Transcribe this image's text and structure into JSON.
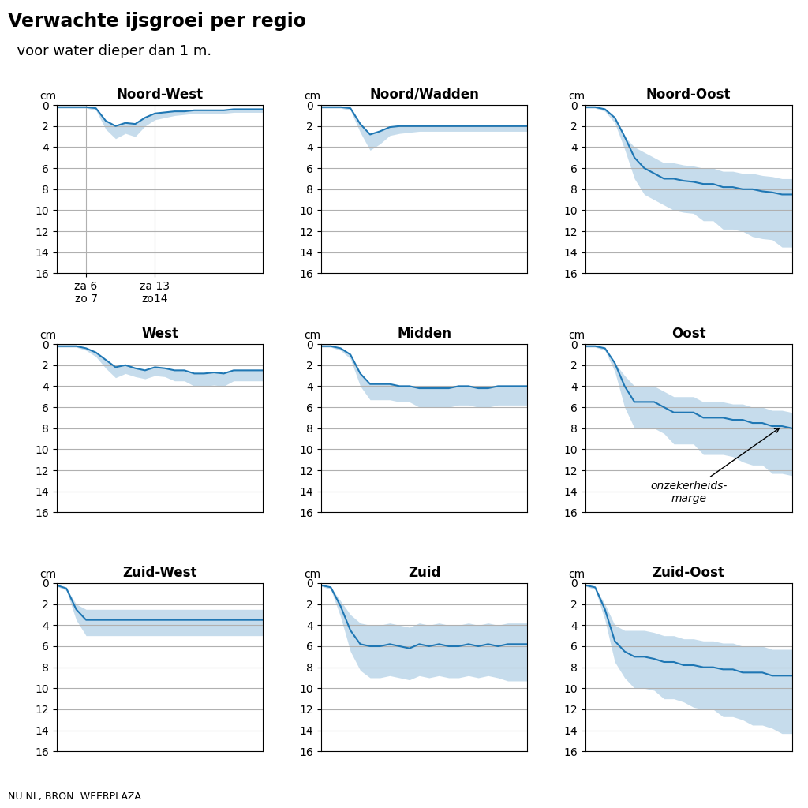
{
  "title": "Verwachte ijsgroei per regio",
  "subtitle": "  voor water dieper dan 1 m.",
  "source": "NU.NL, BRON: WEERPLAZA",
  "chart_data": [
    {
      "type": "line",
      "title": "Noord-West",
      "y_label": "cm",
      "categories": [
        null,
        null,
        null,
        "za 6\nzo 7",
        null,
        null,
        null,
        null,
        null,
        null,
        "za 13\nzo14",
        null,
        null,
        null,
        null,
        null,
        null,
        null,
        null,
        null,
        null,
        null
      ],
      "values": [
        0.2,
        0.2,
        0.2,
        0.2,
        0.3,
        1.5,
        2.0,
        1.7,
        1.8,
        1.2,
        0.8,
        0.7,
        0.6,
        0.6,
        0.5,
        0.5,
        0.5,
        0.5,
        0.4,
        0.4,
        0.4,
        0.4
      ],
      "error_upper": [
        0.1,
        0.1,
        0.1,
        0.1,
        0.2,
        0.8,
        1.2,
        1.0,
        1.2,
        0.8,
        0.6,
        0.5,
        0.4,
        0.3,
        0.3,
        0.3,
        0.3,
        0.3,
        0.3,
        0.3,
        0.3,
        0.3
      ],
      "error_lower": [
        0.0,
        0.0,
        0.0,
        0.0,
        0.0,
        0.0,
        0.0,
        0.0,
        0.0,
        0.0,
        0.0,
        0.0,
        0.0,
        0.0,
        0.0,
        0.0,
        0.0,
        0.0,
        0.0,
        0.0,
        0.0,
        0.0
      ],
      "ylim": [
        16,
        0
      ],
      "yticks": [
        0,
        2,
        4,
        6,
        8,
        10,
        12,
        14,
        16
      ],
      "grid": true
    },
    {
      "type": "line",
      "title": "Noord/Wadden",
      "y_label": "cm",
      "categories": [
        null,
        null,
        null,
        null,
        null,
        null,
        null,
        null,
        null,
        null,
        null,
        null,
        null,
        null,
        null,
        null,
        null,
        null,
        null,
        null,
        null,
        null
      ],
      "values": [
        0.2,
        0.2,
        0.2,
        0.3,
        1.8,
        2.8,
        2.5,
        2.1,
        2.0,
        2.0,
        2.0,
        2.0,
        2.0,
        2.0,
        2.0,
        2.0,
        2.0,
        2.0,
        2.0,
        2.0,
        2.0,
        2.0
      ],
      "error_upper": [
        0.1,
        0.1,
        0.1,
        0.2,
        0.8,
        1.5,
        1.2,
        0.8,
        0.7,
        0.6,
        0.5,
        0.5,
        0.5,
        0.5,
        0.5,
        0.5,
        0.5,
        0.5,
        0.5,
        0.5,
        0.5,
        0.5
      ],
      "error_lower": [
        0.0,
        0.0,
        0.0,
        0.0,
        0.0,
        0.0,
        0.0,
        0.0,
        0.0,
        0.0,
        0.0,
        0.0,
        0.0,
        0.0,
        0.0,
        0.0,
        0.0,
        0.0,
        0.0,
        0.0,
        0.0,
        0.0
      ],
      "ylim": [
        16,
        0
      ],
      "yticks": [
        0,
        2,
        4,
        6,
        8,
        10,
        12,
        14,
        16
      ],
      "grid": true
    },
    {
      "type": "line",
      "title": "Noord-Oost",
      "y_label": "cm",
      "categories": [
        null,
        null,
        null,
        null,
        null,
        null,
        null,
        null,
        null,
        null,
        null,
        null,
        null,
        null,
        null,
        null,
        null,
        null,
        null,
        null,
        null,
        null
      ],
      "values": [
        0.2,
        0.2,
        0.4,
        1.2,
        3.0,
        5.0,
        6.0,
        6.5,
        7.0,
        7.0,
        7.2,
        7.3,
        7.5,
        7.5,
        7.8,
        7.8,
        8.0,
        8.0,
        8.2,
        8.3,
        8.5,
        8.5
      ],
      "error_upper": [
        0.1,
        0.1,
        0.2,
        0.5,
        1.2,
        2.0,
        2.5,
        2.5,
        2.5,
        3.0,
        3.0,
        3.0,
        3.5,
        3.5,
        4.0,
        4.0,
        4.0,
        4.5,
        4.5,
        4.5,
        5.0,
        5.0
      ],
      "error_lower": [
        0.0,
        0.0,
        0.0,
        0.0,
        0.0,
        1.0,
        1.5,
        1.5,
        1.5,
        1.5,
        1.5,
        1.5,
        1.5,
        1.5,
        1.5,
        1.5,
        1.5,
        1.5,
        1.5,
        1.5,
        1.5,
        1.5
      ],
      "ylim": [
        16,
        0
      ],
      "yticks": [
        0,
        2,
        4,
        6,
        8,
        10,
        12,
        14,
        16
      ],
      "grid": true
    },
    {
      "type": "line",
      "title": "West",
      "y_label": "cm",
      "categories": [
        null,
        null,
        null,
        null,
        null,
        null,
        null,
        null,
        null,
        null,
        null,
        null,
        null,
        null,
        null,
        null,
        null,
        null,
        null,
        null,
        null,
        null
      ],
      "values": [
        0.2,
        0.2,
        0.2,
        0.4,
        0.8,
        1.5,
        2.2,
        2.0,
        2.3,
        2.5,
        2.2,
        2.3,
        2.5,
        2.5,
        2.8,
        2.8,
        2.7,
        2.8,
        2.5,
        2.5,
        2.5,
        2.5
      ],
      "error_upper": [
        0.1,
        0.1,
        0.1,
        0.2,
        0.4,
        0.8,
        1.0,
        0.8,
        0.8,
        0.8,
        0.8,
        0.8,
        1.0,
        1.0,
        1.2,
        1.2,
        1.2,
        1.2,
        1.0,
        1.0,
        1.0,
        1.0
      ],
      "error_lower": [
        0.0,
        0.0,
        0.0,
        0.0,
        0.0,
        0.0,
        0.0,
        0.0,
        0.0,
        0.0,
        0.0,
        0.0,
        0.0,
        0.0,
        0.0,
        0.0,
        0.0,
        0.0,
        0.0,
        0.0,
        0.0,
        0.0
      ],
      "ylim": [
        16,
        0
      ],
      "yticks": [
        0,
        2,
        4,
        6,
        8,
        10,
        12,
        14,
        16
      ],
      "grid": true
    },
    {
      "type": "line",
      "title": "Midden",
      "y_label": "cm",
      "categories": [
        null,
        null,
        null,
        null,
        null,
        null,
        null,
        null,
        null,
        null,
        null,
        null,
        null,
        null,
        null,
        null,
        null,
        null,
        null,
        null,
        null,
        null
      ],
      "values": [
        0.2,
        0.2,
        0.4,
        1.0,
        2.8,
        3.8,
        3.8,
        3.8,
        4.0,
        4.0,
        4.2,
        4.2,
        4.2,
        4.2,
        4.0,
        4.0,
        4.2,
        4.2,
        4.0,
        4.0,
        4.0,
        4.0
      ],
      "error_upper": [
        0.1,
        0.1,
        0.2,
        0.4,
        1.2,
        1.5,
        1.5,
        1.5,
        1.5,
        1.5,
        1.8,
        1.8,
        1.8,
        1.8,
        1.8,
        1.8,
        1.8,
        1.8,
        1.8,
        1.8,
        1.8,
        1.8
      ],
      "error_lower": [
        0.0,
        0.0,
        0.0,
        0.0,
        0.0,
        0.0,
        0.0,
        0.0,
        0.0,
        0.0,
        0.0,
        0.0,
        0.0,
        0.0,
        0.0,
        0.0,
        0.0,
        0.0,
        0.0,
        0.0,
        0.0,
        0.0
      ],
      "ylim": [
        16,
        0
      ],
      "yticks": [
        0,
        2,
        4,
        6,
        8,
        10,
        12,
        14,
        16
      ],
      "grid": true
    },
    {
      "type": "line",
      "title": "Oost",
      "y_label": "cm",
      "categories": [
        null,
        null,
        null,
        null,
        null,
        null,
        null,
        null,
        null,
        null,
        null,
        null,
        null,
        null,
        null,
        null,
        null,
        null,
        null,
        null,
        null,
        null
      ],
      "values": [
        0.2,
        0.2,
        0.4,
        1.8,
        4.0,
        5.5,
        5.5,
        5.5,
        6.0,
        6.5,
        6.5,
        6.5,
        7.0,
        7.0,
        7.0,
        7.2,
        7.2,
        7.5,
        7.5,
        7.8,
        7.8,
        8.0
      ],
      "error_upper": [
        0.1,
        0.1,
        0.2,
        0.8,
        2.0,
        2.5,
        2.5,
        2.5,
        2.5,
        3.0,
        3.0,
        3.0,
        3.5,
        3.5,
        3.5,
        3.5,
        4.0,
        4.0,
        4.0,
        4.5,
        4.5,
        4.5
      ],
      "error_lower": [
        0.0,
        0.0,
        0.0,
        0.0,
        1.0,
        1.5,
        1.5,
        1.5,
        1.5,
        1.5,
        1.5,
        1.5,
        1.5,
        1.5,
        1.5,
        1.5,
        1.5,
        1.5,
        1.5,
        1.5,
        1.5,
        1.5
      ],
      "annotation": "onzekerheids-\nmarge",
      "ylim": [
        16,
        0
      ],
      "yticks": [
        0,
        2,
        4,
        6,
        8,
        10,
        12,
        14,
        16
      ],
      "grid": true
    },
    {
      "type": "line",
      "title": "Zuid-West",
      "y_label": "cm",
      "categories": [
        null,
        null,
        null,
        null,
        null,
        null,
        null,
        null,
        null,
        null,
        null,
        null,
        null,
        null,
        null,
        null,
        null,
        null,
        null,
        null,
        null,
        null
      ],
      "values": [
        0.2,
        0.5,
        2.5,
        3.5,
        3.5,
        3.5,
        3.5,
        3.5,
        3.5,
        3.5,
        3.5,
        3.5,
        3.5,
        3.5,
        3.5,
        3.5,
        3.5,
        3.5,
        3.5,
        3.5,
        3.5,
        3.5
      ],
      "error_upper": [
        0.1,
        0.2,
        1.0,
        1.5,
        1.5,
        1.5,
        1.5,
        1.5,
        1.5,
        1.5,
        1.5,
        1.5,
        1.5,
        1.5,
        1.5,
        1.5,
        1.5,
        1.5,
        1.5,
        1.5,
        1.5,
        1.5
      ],
      "error_lower": [
        0.0,
        0.0,
        0.5,
        1.0,
        1.0,
        1.0,
        1.0,
        1.0,
        1.0,
        1.0,
        1.0,
        1.0,
        1.0,
        1.0,
        1.0,
        1.0,
        1.0,
        1.0,
        1.0,
        1.0,
        1.0,
        1.0
      ],
      "ylim": [
        16,
        0
      ],
      "yticks": [
        0,
        2,
        4,
        6,
        8,
        10,
        12,
        14,
        16
      ],
      "grid": true
    },
    {
      "type": "line",
      "title": "Zuid",
      "y_label": "cm",
      "categories": [
        null,
        null,
        null,
        null,
        null,
        null,
        null,
        null,
        null,
        null,
        null,
        null,
        null,
        null,
        null,
        null,
        null,
        null,
        null,
        null,
        null,
        null
      ],
      "values": [
        0.2,
        0.4,
        2.2,
        4.5,
        5.8,
        6.0,
        6.0,
        5.8,
        6.0,
        6.2,
        5.8,
        6.0,
        5.8,
        6.0,
        6.0,
        5.8,
        6.0,
        5.8,
        6.0,
        5.8,
        5.8,
        5.8
      ],
      "error_upper": [
        0.1,
        0.2,
        1.0,
        2.0,
        2.5,
        3.0,
        3.0,
        3.0,
        3.0,
        3.0,
        3.0,
        3.0,
        3.0,
        3.0,
        3.0,
        3.0,
        3.0,
        3.0,
        3.0,
        3.5,
        3.5,
        3.5
      ],
      "error_lower": [
        0.0,
        0.0,
        0.5,
        1.5,
        2.0,
        2.0,
        2.0,
        2.0,
        2.0,
        2.0,
        2.0,
        2.0,
        2.0,
        2.0,
        2.0,
        2.0,
        2.0,
        2.0,
        2.0,
        2.0,
        2.0,
        2.0
      ],
      "ylim": [
        16,
        0
      ],
      "yticks": [
        0,
        2,
        4,
        6,
        8,
        10,
        12,
        14,
        16
      ],
      "grid": true
    },
    {
      "type": "line",
      "title": "Zuid-Oost",
      "y_label": "cm",
      "categories": [
        null,
        null,
        null,
        null,
        null,
        null,
        null,
        null,
        null,
        null,
        null,
        null,
        null,
        null,
        null,
        null,
        null,
        null,
        null,
        null,
        null,
        null
      ],
      "values": [
        0.2,
        0.4,
        2.5,
        5.5,
        6.5,
        7.0,
        7.0,
        7.2,
        7.5,
        7.5,
        7.8,
        7.8,
        8.0,
        8.0,
        8.2,
        8.2,
        8.5,
        8.5,
        8.5,
        8.8,
        8.8,
        8.8
      ],
      "error_upper": [
        0.1,
        0.2,
        1.0,
        2.0,
        2.5,
        3.0,
        3.0,
        3.0,
        3.5,
        3.5,
        3.5,
        4.0,
        4.0,
        4.0,
        4.5,
        4.5,
        4.5,
        5.0,
        5.0,
        5.0,
        5.5,
        5.5
      ],
      "error_lower": [
        0.0,
        0.0,
        0.5,
        1.5,
        2.0,
        2.5,
        2.5,
        2.5,
        2.5,
        2.5,
        2.5,
        2.5,
        2.5,
        2.5,
        2.5,
        2.5,
        2.5,
        2.5,
        2.5,
        2.5,
        2.5,
        2.5
      ],
      "ylim": [
        16,
        0
      ],
      "yticks": [
        0,
        2,
        4,
        6,
        8,
        10,
        12,
        14,
        16
      ],
      "grid": true
    }
  ]
}
